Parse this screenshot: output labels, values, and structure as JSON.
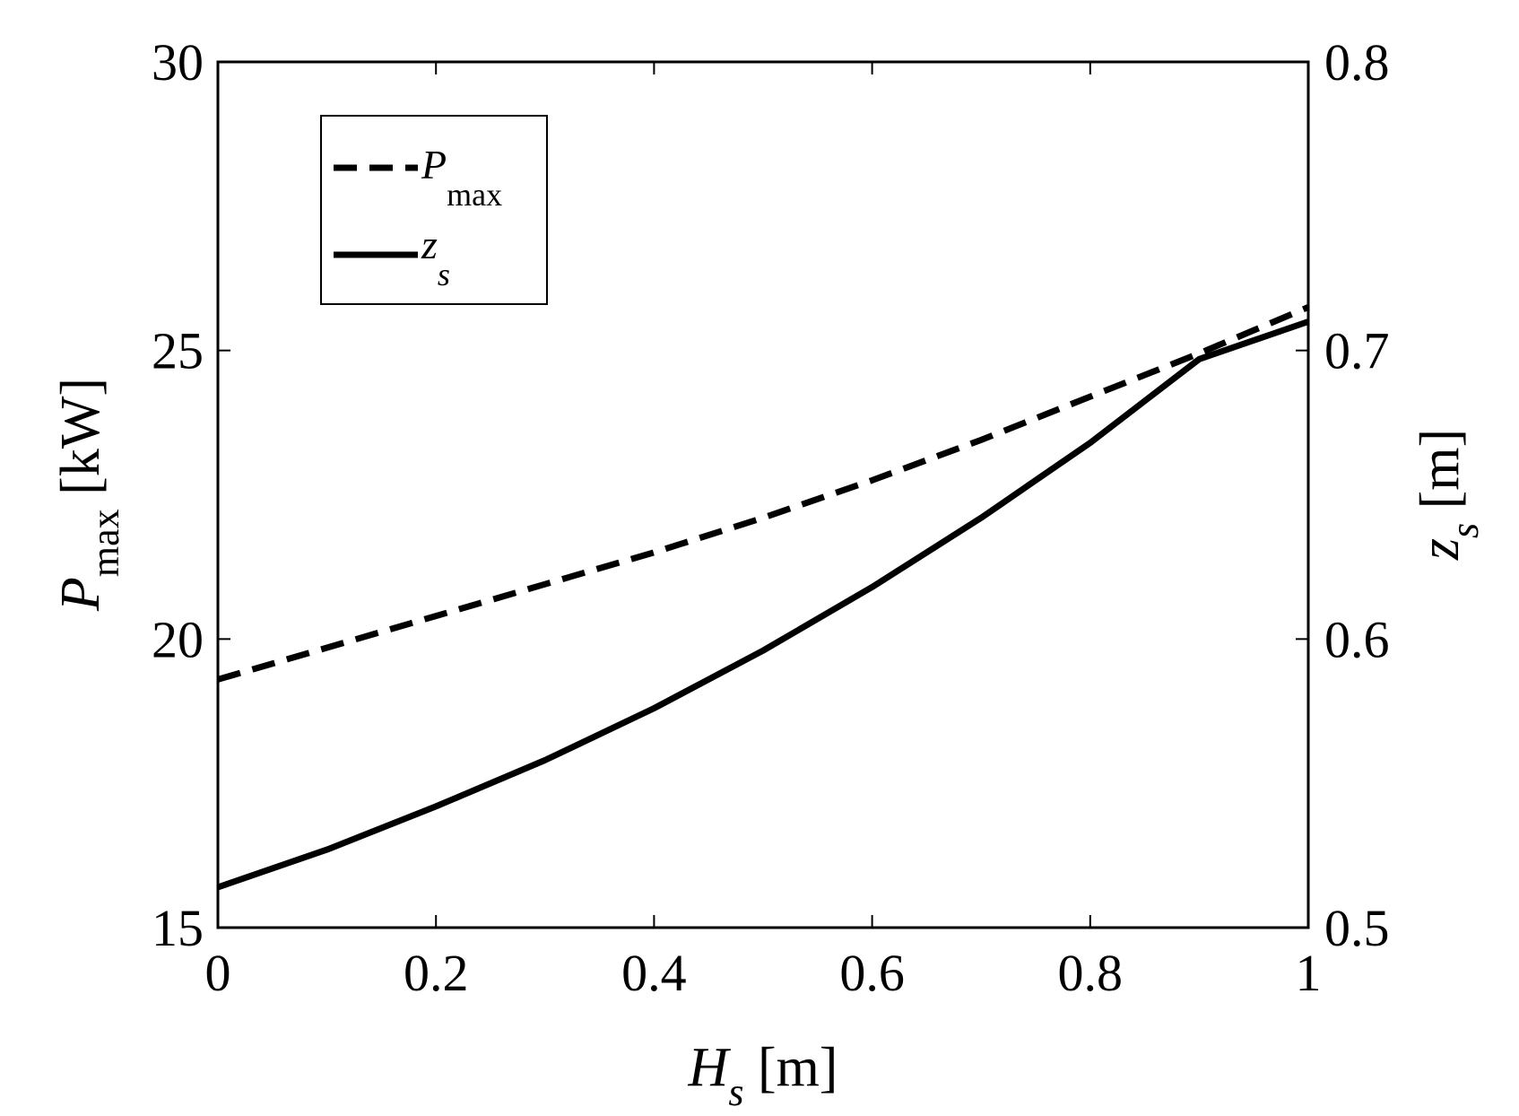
{
  "chart_data": {
    "type": "line",
    "x": [
      0,
      0.1,
      0.2,
      0.3,
      0.4,
      0.5,
      0.6,
      0.7,
      0.8,
      0.9,
      1.0
    ],
    "series": [
      {
        "name": "P_max",
        "legend_label": "P",
        "legend_sub": "max",
        "axis": "left",
        "style": "dashed",
        "values": [
          19.3,
          19.85,
          20.4,
          20.95,
          21.5,
          22.1,
          22.75,
          23.45,
          24.2,
          24.95,
          25.75
        ]
      },
      {
        "name": "z_s",
        "legend_label": "z",
        "legend_sub": "s",
        "axis": "right",
        "style": "solid",
        "values": [
          0.514,
          0.527,
          0.542,
          0.558,
          0.576,
          0.596,
          0.618,
          0.642,
          0.668,
          0.697,
          0.71
        ]
      }
    ],
    "xlim": [
      0,
      1
    ],
    "ylim_left": [
      15,
      30
    ],
    "ylim_right": [
      0.5,
      0.8
    ],
    "x_ticks": [
      "0",
      "0.2",
      "0.4",
      "0.6",
      "0.8",
      "1"
    ],
    "y_left_ticks": [
      "15",
      "20",
      "25",
      "30"
    ],
    "y_right_ticks": [
      "0.5",
      "0.6",
      "0.7",
      "0.8"
    ],
    "xlabel": {
      "main": "H",
      "sub": "s",
      "unit": " [m]"
    },
    "ylabel_left": {
      "main": "P",
      "sub": "max",
      "unit": " [kW]"
    },
    "ylabel_right": {
      "main": "z",
      "sub": "s",
      "unit": " [m]"
    },
    "legend_position": "top-left",
    "grid": false,
    "line_color": "#000000"
  }
}
